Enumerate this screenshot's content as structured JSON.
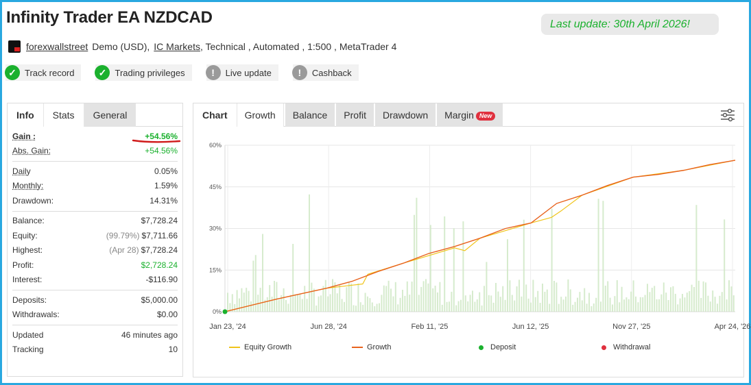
{
  "header": {
    "title": "Infinity Trader EA NZDCAD",
    "last_update": "Last update: 30th April 2026!"
  },
  "meta": {
    "author": "forexwallstreet",
    "account_type": "Demo (USD),",
    "broker": "IC Markets",
    "tail": ", Technical , Automated , 1:500 , MetaTrader 4"
  },
  "badges": [
    {
      "label": "Track record",
      "status": "ok",
      "icon": "check-icon"
    },
    {
      "label": "Trading privileges",
      "status": "ok",
      "icon": "check-icon"
    },
    {
      "label": "Live update",
      "status": "no",
      "icon": "exclamation-icon"
    },
    {
      "label": "Cashback",
      "status": "no",
      "icon": "exclamation-icon"
    }
  ],
  "left_tabs": [
    "Info",
    "Stats",
    "General"
  ],
  "stats": {
    "gain": {
      "label": "Gain :",
      "value": "+54.56%"
    },
    "abs_gain": {
      "label": "Abs. Gain:",
      "value": "+54.56%"
    },
    "daily": {
      "label": "Daily",
      "value": "0.05%"
    },
    "monthly": {
      "label": "Monthly:",
      "value": "1.59%"
    },
    "drawdown": {
      "label": "Drawdown:",
      "value": "14.31%"
    },
    "balance": {
      "label": "Balance:",
      "value": "$7,728.24"
    },
    "equity": {
      "label": "Equity:",
      "note": "(99.79%)",
      "value": "$7,711.66"
    },
    "highest": {
      "label": "Highest:",
      "note": "(Apr 28)",
      "value": "$7,728.24"
    },
    "profit": {
      "label": "Profit:",
      "value": "$2,728.24"
    },
    "interest": {
      "label": "Interest:",
      "value": "-$116.90"
    },
    "deposits": {
      "label": "Deposits:",
      "value": "$5,000.00"
    },
    "withdrawals": {
      "label": "Withdrawals:",
      "value": "$0.00"
    },
    "updated": {
      "label": "Updated",
      "value": "46 minutes ago"
    },
    "tracking": {
      "label": "Tracking",
      "value": "10"
    }
  },
  "right_tabs": {
    "chart": "Chart",
    "growth": "Growth",
    "balance": "Balance",
    "profit": "Profit",
    "drawdown": "Drawdown",
    "margin": "Margin",
    "new_badge": "New"
  },
  "colors": {
    "accent_green": "#1bb12e",
    "frame_blue": "#29a8e0",
    "growth_line": "#e8621d",
    "equity_line": "#f0c419",
    "deposit": "#1bb12e",
    "withdrawal": "#e0303e",
    "bars": "#cfe8c4"
  },
  "chart_data": {
    "type": "line",
    "y_ticks": [
      "0%",
      "15%",
      "30%",
      "45%",
      "60%"
    ],
    "ylim": [
      0,
      60
    ],
    "x_ticks": [
      "Jan 23, '24",
      "Jun 28, '24",
      "Feb 11, '25",
      "Jun 12, '25",
      "Nov 27, '25",
      "Apr 24, '26"
    ],
    "grid": true,
    "legend_position": "bottom",
    "series": [
      {
        "name": "Growth",
        "x": [
          0,
          0.1,
          0.2,
          0.25,
          0.3,
          0.35,
          0.4,
          0.45,
          0.5,
          0.55,
          0.6,
          0.65,
          0.7,
          0.75,
          0.8,
          0.85,
          0.9,
          0.95,
          1.0
        ],
        "values": [
          0,
          4.5,
          8.5,
          11,
          14.5,
          17.5,
          21,
          23.5,
          26.5,
          30,
          32,
          39,
          42,
          45.5,
          48.5,
          49.5,
          51,
          53,
          54.6
        ]
      },
      {
        "name": "Equity Growth",
        "x": [
          0,
          0.1,
          0.2,
          0.27,
          0.28,
          0.35,
          0.45,
          0.47,
          0.5,
          0.6,
          0.64,
          0.66,
          0.7,
          0.8,
          0.9,
          1.0
        ],
        "values": [
          0,
          4.5,
          8.5,
          10,
          13.5,
          17.5,
          23,
          22,
          26.5,
          32,
          34,
          36.5,
          42,
          48.5,
          51,
          54.6
        ]
      },
      {
        "name": "Deposit",
        "x": [
          0
        ],
        "values": [
          0
        ]
      },
      {
        "name": "Withdrawal",
        "x": [],
        "values": []
      }
    ]
  }
}
